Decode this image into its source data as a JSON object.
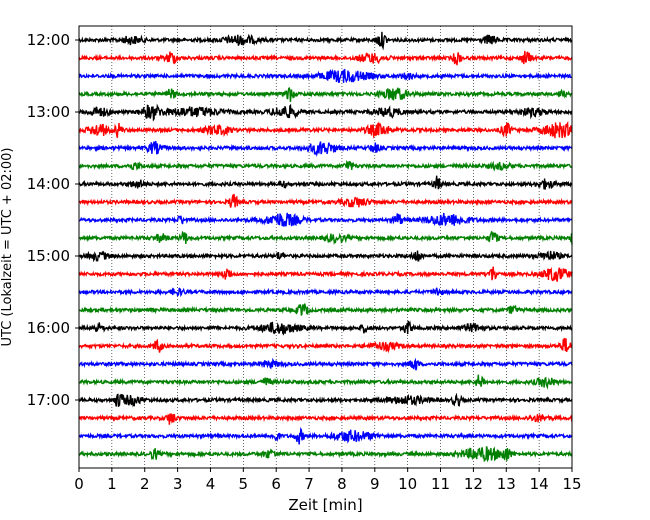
{
  "chart_data": {
    "type": "line",
    "title": "",
    "xlabel": "Zeit  [min]",
    "ylabel": "UTC (Lokalzeit = UTC + 02:00)",
    "xlim": [
      0,
      15
    ],
    "x_ticks": [
      "0",
      "1",
      "2",
      "3",
      "4",
      "5",
      "6",
      "7",
      "8",
      "9",
      "10",
      "11",
      "12",
      "13",
      "14",
      "15"
    ],
    "y_ticks": [
      "12:00",
      "13:00",
      "14:00",
      "15:00",
      "16:00",
      "17:00"
    ],
    "grid": "vertical dotted at each minute",
    "trace_colors": [
      "#000000",
      "#ff0000",
      "#0000ff",
      "#008000"
    ],
    "series": [
      {
        "start": "12:00",
        "color": "#000000",
        "events": [
          [
            1.6,
            0.3,
            0.5
          ],
          [
            4.9,
            0.5,
            0.6
          ],
          [
            9.2,
            0.15,
            1.0
          ],
          [
            12.5,
            0.2,
            0.6
          ]
        ]
      },
      {
        "start": "12:15",
        "color": "#ff0000",
        "events": [
          [
            2.8,
            0.15,
            0.9
          ],
          [
            8.9,
            0.4,
            0.6
          ],
          [
            11.5,
            0.12,
            0.9
          ],
          [
            13.6,
            0.15,
            0.9
          ]
        ]
      },
      {
        "start": "12:30",
        "color": "#0000ff",
        "events": [
          [
            8.1,
            0.7,
            0.8
          ],
          [
            10.0,
            0.2,
            0.4
          ]
        ]
      },
      {
        "start": "12:45",
        "color": "#008000",
        "events": [
          [
            2.8,
            0.15,
            0.6
          ],
          [
            6.4,
            0.12,
            1.0
          ],
          [
            9.6,
            0.4,
            0.8
          ],
          [
            14.7,
            0.1,
            0.4
          ]
        ]
      },
      {
        "start": "13:00",
        "color": "#000000",
        "events": [
          [
            0.6,
            0.3,
            0.6
          ],
          [
            2.2,
            0.3,
            0.9
          ],
          [
            3.5,
            0.8,
            0.6
          ],
          [
            6.3,
            0.4,
            0.8
          ],
          [
            9.4,
            0.4,
            0.6
          ],
          [
            13.8,
            0.4,
            0.5
          ]
        ]
      },
      {
        "start": "13:15",
        "color": "#ff0000",
        "events": [
          [
            0.6,
            0.3,
            0.8
          ],
          [
            1.2,
            0.1,
            1.0
          ],
          [
            4.2,
            0.4,
            0.6
          ],
          [
            9.1,
            0.35,
            0.8
          ],
          [
            13.0,
            0.15,
            0.9
          ],
          [
            14.6,
            0.5,
            1.0
          ]
        ]
      },
      {
        "start": "13:30",
        "color": "#0000ff",
        "events": [
          [
            2.3,
            0.2,
            0.8
          ],
          [
            7.4,
            0.4,
            0.9
          ],
          [
            9.0,
            0.15,
            0.6
          ]
        ]
      },
      {
        "start": "13:45",
        "color": "#008000",
        "events": [
          [
            1.7,
            0.2,
            0.4
          ],
          [
            8.2,
            0.12,
            0.7
          ],
          [
            12.8,
            0.3,
            0.4
          ]
        ]
      },
      {
        "start": "14:00",
        "color": "#000000",
        "events": [
          [
            1.8,
            0.2,
            0.5
          ],
          [
            6.2,
            0.1,
            0.5
          ],
          [
            10.9,
            0.1,
            1.0
          ],
          [
            14.2,
            0.25,
            0.6
          ]
        ]
      },
      {
        "start": "14:15",
        "color": "#ff0000",
        "events": [
          [
            4.7,
            0.12,
            1.0
          ],
          [
            8.4,
            0.4,
            0.6
          ]
        ]
      },
      {
        "start": "14:30",
        "color": "#0000ff",
        "events": [
          [
            3.1,
            0.1,
            0.6
          ],
          [
            6.2,
            0.5,
            0.9
          ],
          [
            9.7,
            0.12,
            0.9
          ],
          [
            11.2,
            0.6,
            0.8
          ]
        ]
      },
      {
        "start": "14:45",
        "color": "#008000",
        "events": [
          [
            2.5,
            0.2,
            0.5
          ],
          [
            3.2,
            0.1,
            0.9
          ],
          [
            7.8,
            0.3,
            0.5
          ],
          [
            12.6,
            0.12,
            1.0
          ],
          [
            15.0,
            0.05,
            0.8
          ]
        ]
      },
      {
        "start": "15:00",
        "color": "#000000",
        "events": [
          [
            0.6,
            0.3,
            0.5
          ],
          [
            6.1,
            0.1,
            0.5
          ],
          [
            10.3,
            0.12,
            0.9
          ],
          [
            14.3,
            0.3,
            0.6
          ]
        ]
      },
      {
        "start": "15:15",
        "color": "#ff0000",
        "events": [
          [
            4.5,
            0.12,
            0.9
          ],
          [
            12.6,
            0.12,
            1.0
          ],
          [
            14.5,
            0.4,
            0.9
          ]
        ]
      },
      {
        "start": "15:30",
        "color": "#0000ff",
        "events": [
          [
            3.0,
            0.2,
            0.4
          ],
          [
            10.9,
            0.12,
            0.6
          ]
        ]
      },
      {
        "start": "15:45",
        "color": "#008000",
        "events": [
          [
            6.8,
            0.15,
            0.9
          ],
          [
            13.2,
            0.12,
            0.6
          ]
        ]
      },
      {
        "start": "16:00",
        "color": "#000000",
        "events": [
          [
            0.6,
            0.15,
            0.6
          ],
          [
            6.1,
            0.6,
            0.7
          ],
          [
            8.7,
            0.1,
            0.6
          ],
          [
            10.0,
            0.12,
            0.9
          ],
          [
            12.0,
            0.3,
            0.5
          ]
        ]
      },
      {
        "start": "16:15",
        "color": "#ff0000",
        "events": [
          [
            2.4,
            0.12,
            0.9
          ],
          [
            9.3,
            0.4,
            0.5
          ],
          [
            14.8,
            0.15,
            1.0
          ]
        ]
      },
      {
        "start": "16:30",
        "color": "#0000ff",
        "events": [
          [
            10.2,
            0.12,
            0.9
          ],
          [
            5.8,
            0.3,
            0.4
          ]
        ]
      },
      {
        "start": "16:45",
        "color": "#008000",
        "events": [
          [
            5.7,
            0.15,
            0.5
          ],
          [
            12.2,
            0.12,
            1.0
          ],
          [
            14.2,
            0.3,
            0.6
          ]
        ]
      },
      {
        "start": "17:00",
        "color": "#000000",
        "events": [
          [
            1.2,
            0.12,
            0.9
          ],
          [
            1.6,
            0.3,
            0.6
          ],
          [
            10.0,
            0.6,
            0.5
          ],
          [
            11.5,
            0.12,
            0.8
          ]
        ]
      },
      {
        "start": "17:15",
        "color": "#ff0000",
        "events": [
          [
            2.8,
            0.12,
            0.9
          ],
          [
            14.0,
            0.3,
            0.4
          ]
        ]
      },
      {
        "start": "17:30",
        "color": "#0000ff",
        "events": [
          [
            6.0,
            0.1,
            0.6
          ],
          [
            6.7,
            0.12,
            1.0
          ],
          [
            8.3,
            0.6,
            0.7
          ]
        ]
      },
      {
        "start": "17:45",
        "color": "#008000",
        "events": [
          [
            2.3,
            0.12,
            0.7
          ],
          [
            5.8,
            0.2,
            0.5
          ],
          [
            12.3,
            0.6,
            0.9
          ],
          [
            13.0,
            0.12,
            0.8
          ]
        ]
      }
    ]
  }
}
